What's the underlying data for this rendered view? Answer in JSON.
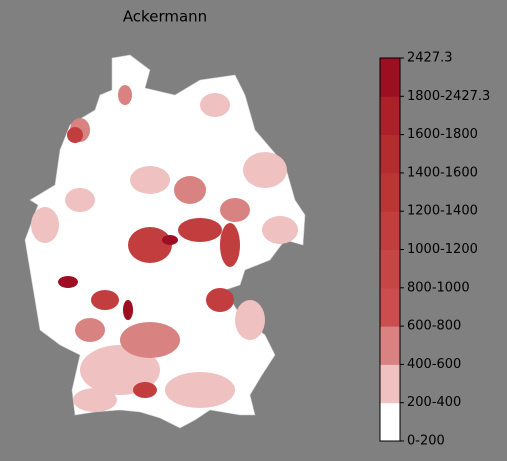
{
  "title": "Ackermann",
  "legend": {
    "labels": [
      "0-200",
      "200-400",
      "400-600",
      "600-800",
      "800-1000",
      "1000-1200",
      "1200-1400",
      "1400-1600",
      "1600-1800",
      "1800-2427.3",
      "2427.3"
    ],
    "colors": [
      "#ffffff",
      "#efc1c1",
      "#d98282",
      "#cb4d4d",
      "#c64646",
      "#c23d3d",
      "#bc3535",
      "#b52c2f",
      "#ac2129",
      "#9c0f22"
    ]
  }
}
